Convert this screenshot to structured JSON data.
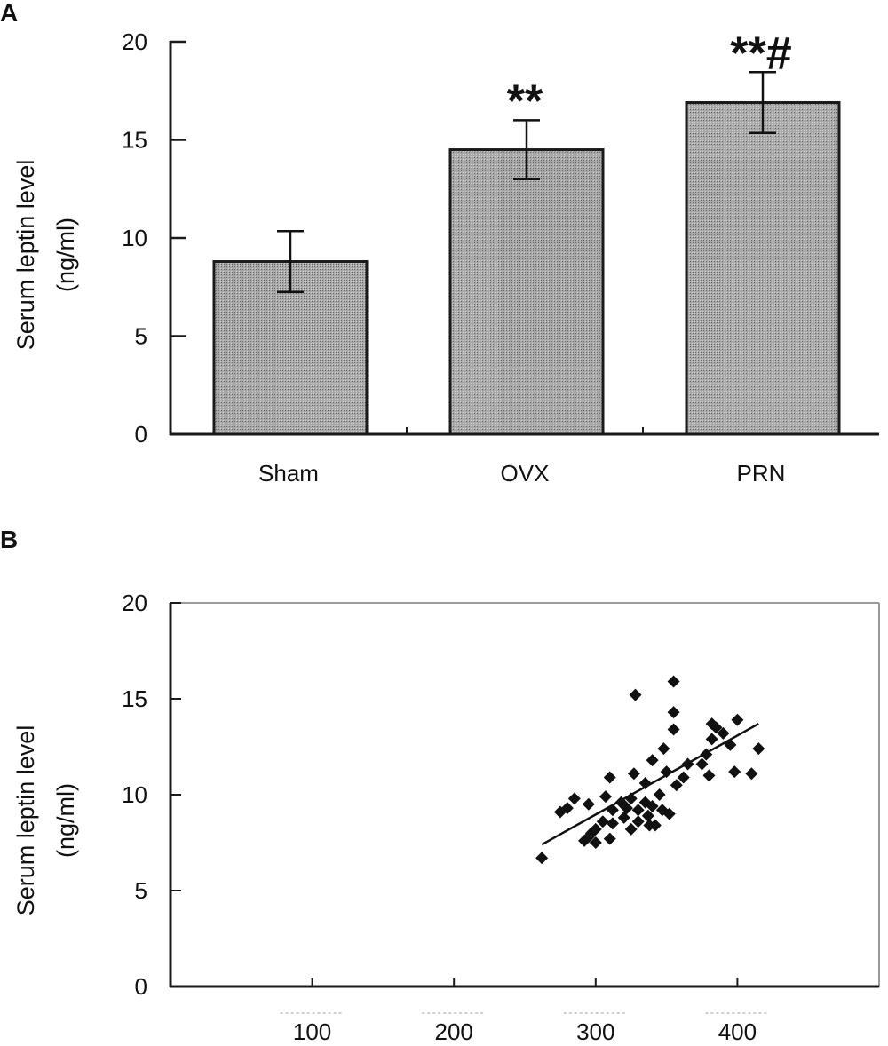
{
  "chart_data": [
    {
      "panel": "A",
      "type": "bar",
      "categories": [
        "Sham",
        "OVX",
        "PRN"
      ],
      "values": [
        8.8,
        14.5,
        16.9
      ],
      "errors": [
        1.55,
        1.5,
        1.55
      ],
      "annotations": [
        "",
        "**",
        "**#"
      ],
      "ylabel_line1": "Serum leptin level",
      "ylabel_line2": "(ng/ml)",
      "ylim": [
        0,
        20
      ],
      "yticks": [
        "0",
        "5",
        "10",
        "15",
        "20"
      ],
      "grid": false,
      "colors": {
        "bar_fill": "#9a9a9a",
        "bar_stroke": "#1a1a1a",
        "axis": "#1a1a1a"
      }
    },
    {
      "panel": "B",
      "type": "scatter",
      "ylabel_line1": "Serum leptin level",
      "ylabel_line2": "(ng/ml)",
      "ylim": [
        0,
        20
      ],
      "xlim": [
        0,
        500
      ],
      "yticks": [
        "0",
        "5",
        "10",
        "15",
        "20"
      ],
      "xticks": [
        "100",
        "200",
        "300",
        "400"
      ],
      "grid": false,
      "trendline": {
        "x": [
          262,
          415
        ],
        "y": [
          7.4,
          13.7
        ]
      },
      "points": [
        [
          262,
          6.7
        ],
        [
          275,
          9.1
        ],
        [
          280,
          9.3
        ],
        [
          285,
          9.8
        ],
        [
          292,
          7.6
        ],
        [
          295,
          7.8
        ],
        [
          295,
          9.5
        ],
        [
          297,
          8.0
        ],
        [
          300,
          7.5
        ],
        [
          300,
          8.2
        ],
        [
          305,
          8.6
        ],
        [
          307,
          9.9
        ],
        [
          310,
          7.7
        ],
        [
          312,
          8.5
        ],
        [
          310,
          10.9
        ],
        [
          312,
          9.2
        ],
        [
          318,
          9.6
        ],
        [
          320,
          8.8
        ],
        [
          322,
          9.3
        ],
        [
          325,
          8.2
        ],
        [
          325,
          9.8
        ],
        [
          327,
          11.1
        ],
        [
          328,
          15.2
        ],
        [
          330,
          8.6
        ],
        [
          330,
          9.2
        ],
        [
          335,
          9.6
        ],
        [
          335,
          10.6
        ],
        [
          337,
          8.9
        ],
        [
          338,
          8.4
        ],
        [
          340,
          9.4
        ],
        [
          340,
          11.8
        ],
        [
          342,
          8.4
        ],
        [
          345,
          10.0
        ],
        [
          347,
          9.2
        ],
        [
          348,
          12.4
        ],
        [
          350,
          11.2
        ],
        [
          352,
          9.0
        ],
        [
          355,
          15.9
        ],
        [
          355,
          14.3
        ],
        [
          355,
          13.4
        ],
        [
          357,
          10.5
        ],
        [
          362,
          10.9
        ],
        [
          365,
          11.6
        ],
        [
          375,
          11.6
        ],
        [
          378,
          12.1
        ],
        [
          380,
          11.0
        ],
        [
          382,
          12.9
        ],
        [
          382,
          13.7
        ],
        [
          385,
          13.5
        ],
        [
          390,
          13.2
        ],
        [
          395,
          12.6
        ],
        [
          398,
          11.2
        ],
        [
          400,
          13.9
        ],
        [
          410,
          11.1
        ],
        [
          415,
          12.4
        ]
      ],
      "colors": {
        "marker": "#111111",
        "line": "#111111",
        "axis": "#1a1a1a",
        "frame": "#9a9a9a",
        "xtick_label_smudge": "#cfcfcf"
      }
    }
  ]
}
